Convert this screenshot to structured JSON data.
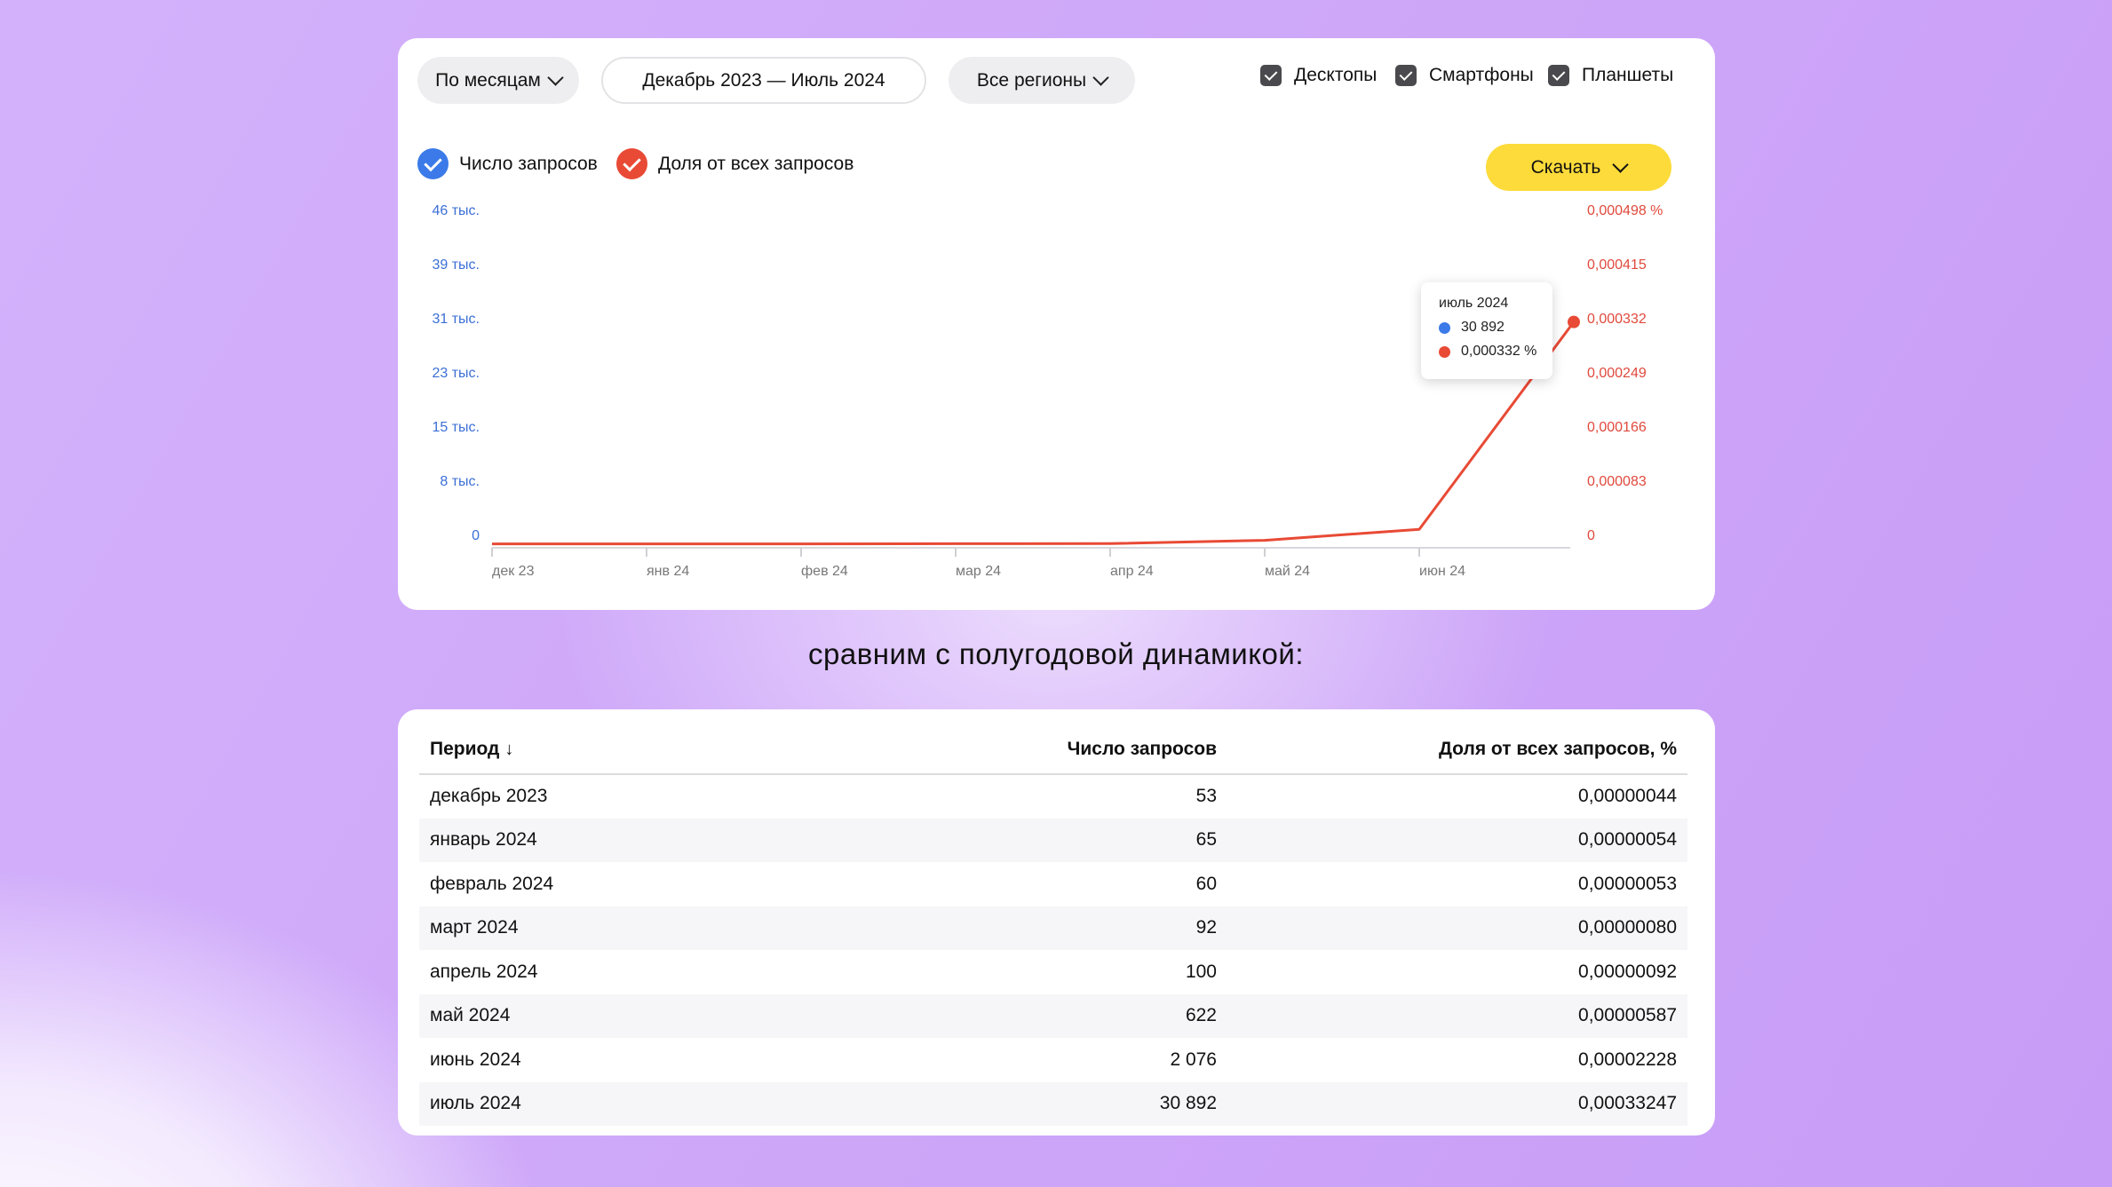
{
  "controls": {
    "period_select": "По месяцам",
    "date_range": "Декабрь 2023 — Июль 2024",
    "region_select": "Все регионы",
    "devices": [
      {
        "label": "Десктопы",
        "checked": true
      },
      {
        "label": "Смартфоны",
        "checked": true
      },
      {
        "label": "Планшеты",
        "checked": true
      }
    ],
    "download_label": "Скачать"
  },
  "legend": {
    "requests": {
      "label": "Число запросов",
      "color": "#3b7ae8"
    },
    "share": {
      "label": "Доля от всех запросов",
      "color": "#e84a35"
    }
  },
  "chart_data": {
    "type": "line",
    "categories": [
      "дек 23",
      "янв 24",
      "фев 24",
      "мар 24",
      "апр 24",
      "май 24",
      "июн 24",
      "июль 2024"
    ],
    "x_tick_labels": [
      "дек 23",
      "янв 24",
      "фев 24",
      "мар 24",
      "апр 24",
      "май 24",
      "июн 24"
    ],
    "series": [
      {
        "name": "Число запросов",
        "axis": "left",
        "color": "#3b7ae8",
        "values": [
          53,
          65,
          60,
          92,
          100,
          622,
          2076,
          30892
        ]
      },
      {
        "name": "Доля от всех запросов",
        "axis": "right",
        "color": "#e84a35",
        "values": [
          4.4e-07,
          5.4e-07,
          5.3e-07,
          8e-07,
          9.2e-07,
          5.87e-06,
          2.228e-05,
          0.00033247
        ]
      }
    ],
    "y_left_ticks": [
      "46 тыс.",
      "39 тыс.",
      "31 тыс.",
      "23 тыс.",
      "15 тыс.",
      "8 тыс.",
      "0"
    ],
    "y_right_ticks": [
      "0,000498 %",
      "0,000415",
      "0,000332",
      "0,000249",
      "0,000166",
      "0,000083",
      "0"
    ],
    "y_right_lim": [
      0,
      0.000498
    ],
    "tooltip": {
      "title": "июль 2024",
      "requests": "30 892",
      "share": "0,000332 %"
    }
  },
  "subtitle": "сравним с полугодовой динамикой:",
  "table": {
    "headers": {
      "period": "Период",
      "sort_arrow": "↓",
      "requests": "Число запросов",
      "share": "Доля от всех запросов, %"
    },
    "rows": [
      {
        "period": "декабрь 2023",
        "requests": "53",
        "share": "0,00000044"
      },
      {
        "period": "январь 2024",
        "requests": "65",
        "share": "0,00000054"
      },
      {
        "period": "февраль 2024",
        "requests": "60",
        "share": "0,00000053"
      },
      {
        "period": "март 2024",
        "requests": "92",
        "share": "0,00000080"
      },
      {
        "period": "апрель 2024",
        "requests": "100",
        "share": "0,00000092"
      },
      {
        "period": "май 2024",
        "requests": "622",
        "share": "0,00000587"
      },
      {
        "period": "июнь 2024",
        "requests": "2 076",
        "share": "0,00002228"
      },
      {
        "period": "июль 2024",
        "requests": "30 892",
        "share": "0,00033247"
      }
    ]
  }
}
